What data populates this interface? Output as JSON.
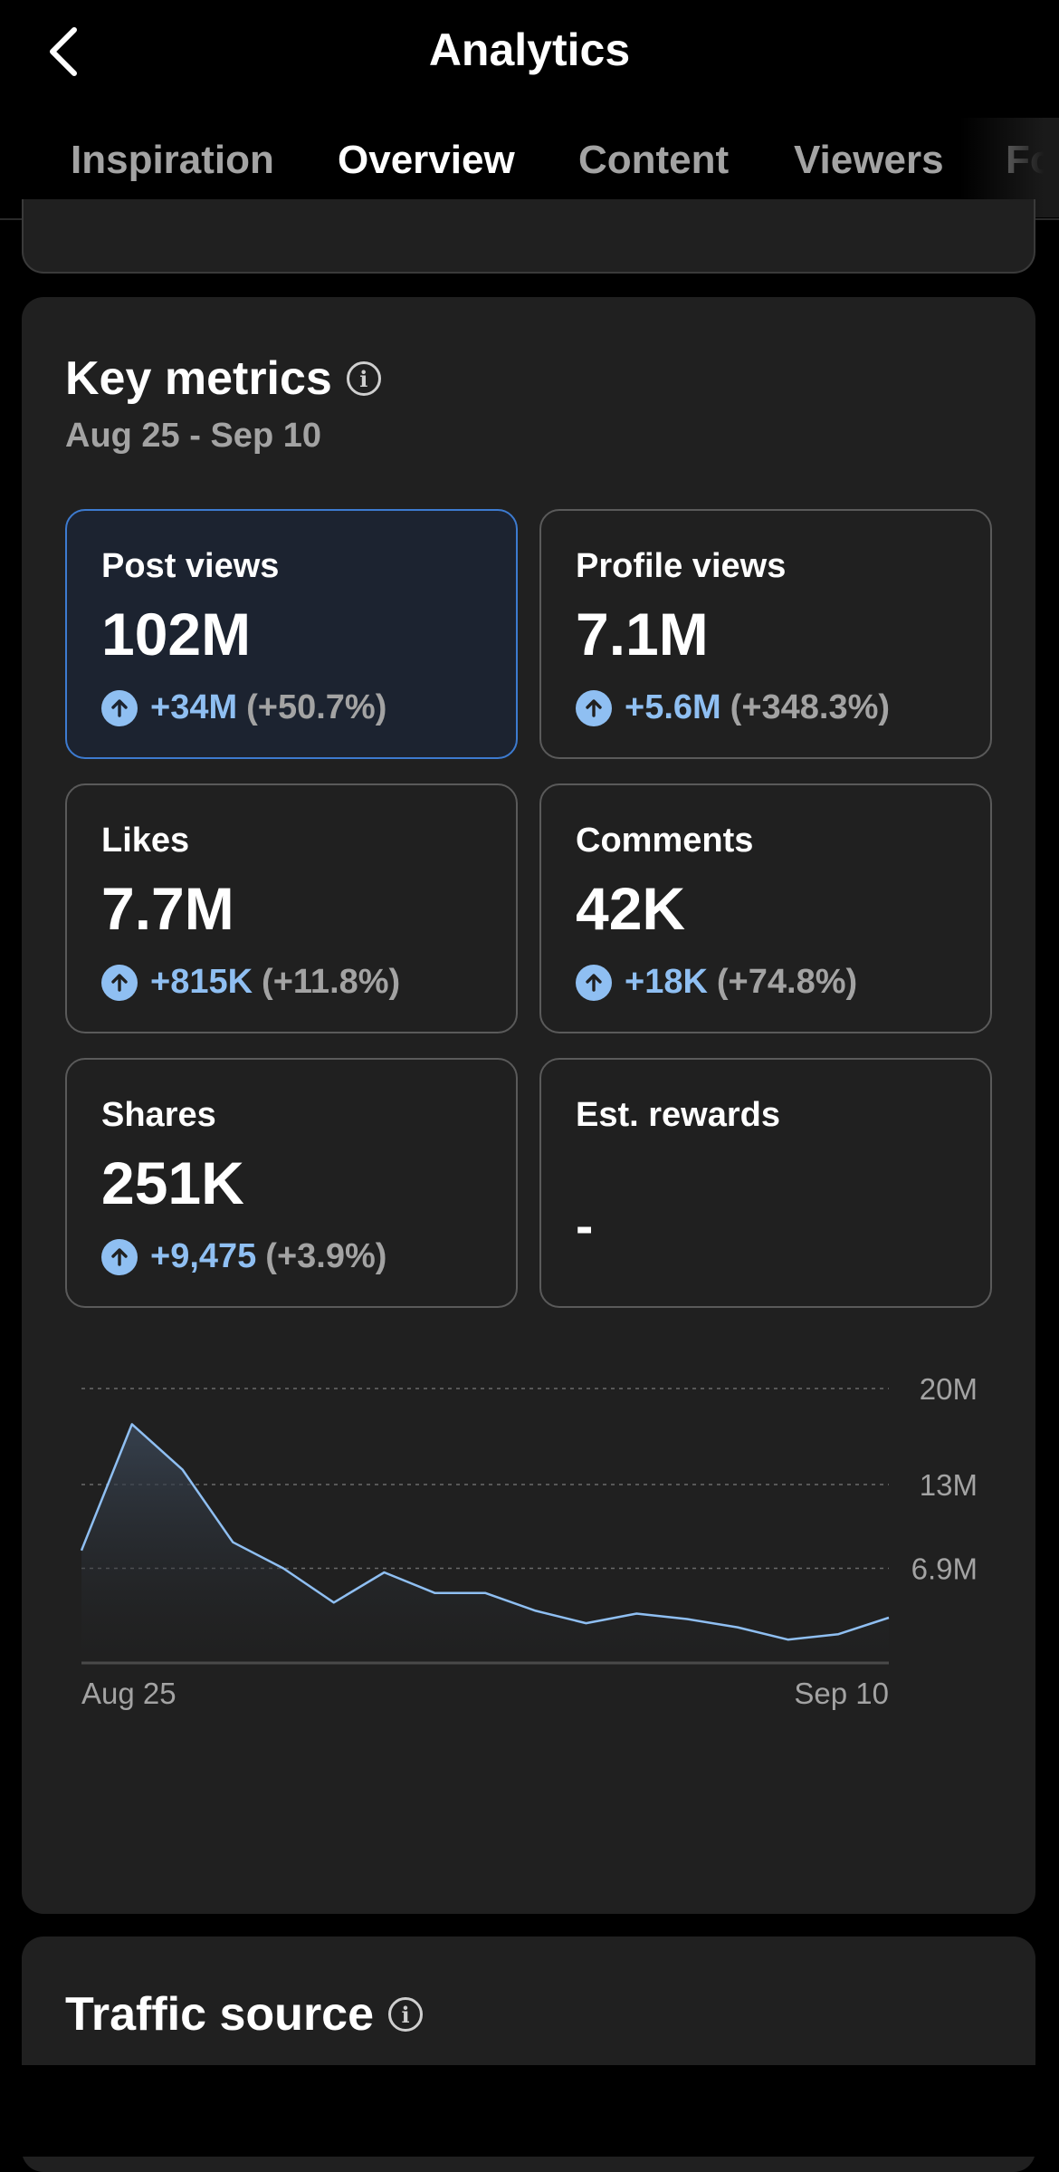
{
  "header": {
    "title": "Analytics",
    "back_icon": "chevron-left-icon"
  },
  "tabs": [
    {
      "label": "Inspiration",
      "active": false
    },
    {
      "label": "Overview",
      "active": true
    },
    {
      "label": "Content",
      "active": false
    },
    {
      "label": "Viewers",
      "active": false
    },
    {
      "label": "Fo",
      "active": false
    }
  ],
  "key_metrics": {
    "title": "Key metrics",
    "date_range": "Aug 25 - Sep 10",
    "tiles": [
      {
        "label": "Post views",
        "value": "102M",
        "change": "+34M",
        "pct": "(+50.7%)",
        "selected": true
      },
      {
        "label": "Profile views",
        "value": "7.1M",
        "change": "+5.6M",
        "pct": "(+348.3%)",
        "selected": false
      },
      {
        "label": "Likes",
        "value": "7.7M",
        "change": "+815K",
        "pct": "(+11.8%)",
        "selected": false
      },
      {
        "label": "Comments",
        "value": "42K",
        "change": "+18K",
        "pct": "(+74.8%)",
        "selected": false
      },
      {
        "label": "Shares",
        "value": "251K",
        "change": "+9,475",
        "pct": "(+3.9%)",
        "selected": false
      },
      {
        "label": "Est. rewards",
        "value": "-",
        "change": "",
        "pct": "",
        "selected": false
      }
    ]
  },
  "chart_data": {
    "type": "area",
    "x": [
      "Aug 25",
      "Aug 26",
      "Aug 27",
      "Aug 28",
      "Aug 29",
      "Aug 30",
      "Aug 31",
      "Sep 1",
      "Sep 2",
      "Sep 3",
      "Sep 4",
      "Sep 5",
      "Sep 6",
      "Sep 7",
      "Sep 8",
      "Sep 9",
      "Sep 10"
    ],
    "values": [
      8.2,
      17.4,
      14.1,
      8.8,
      6.9,
      4.4,
      6.6,
      5.1,
      5.1,
      3.8,
      2.9,
      3.6,
      3.2,
      2.6,
      1.7,
      2.1,
      3.3
    ],
    "ylim": [
      0,
      20
    ],
    "y_ticks": [
      6.9,
      13,
      20
    ],
    "y_tick_labels": [
      "6.9M",
      "13M",
      "20M"
    ],
    "x_tick_labels": [
      "Aug 25",
      "Sep 10"
    ],
    "grid": "dashed horizontal",
    "line_color": "#8fbff2"
  },
  "traffic": {
    "title": "Traffic source"
  },
  "colors": {
    "accent": "#8fbff2",
    "selected_border": "#3d7bd0",
    "card_bg": "#202020"
  }
}
